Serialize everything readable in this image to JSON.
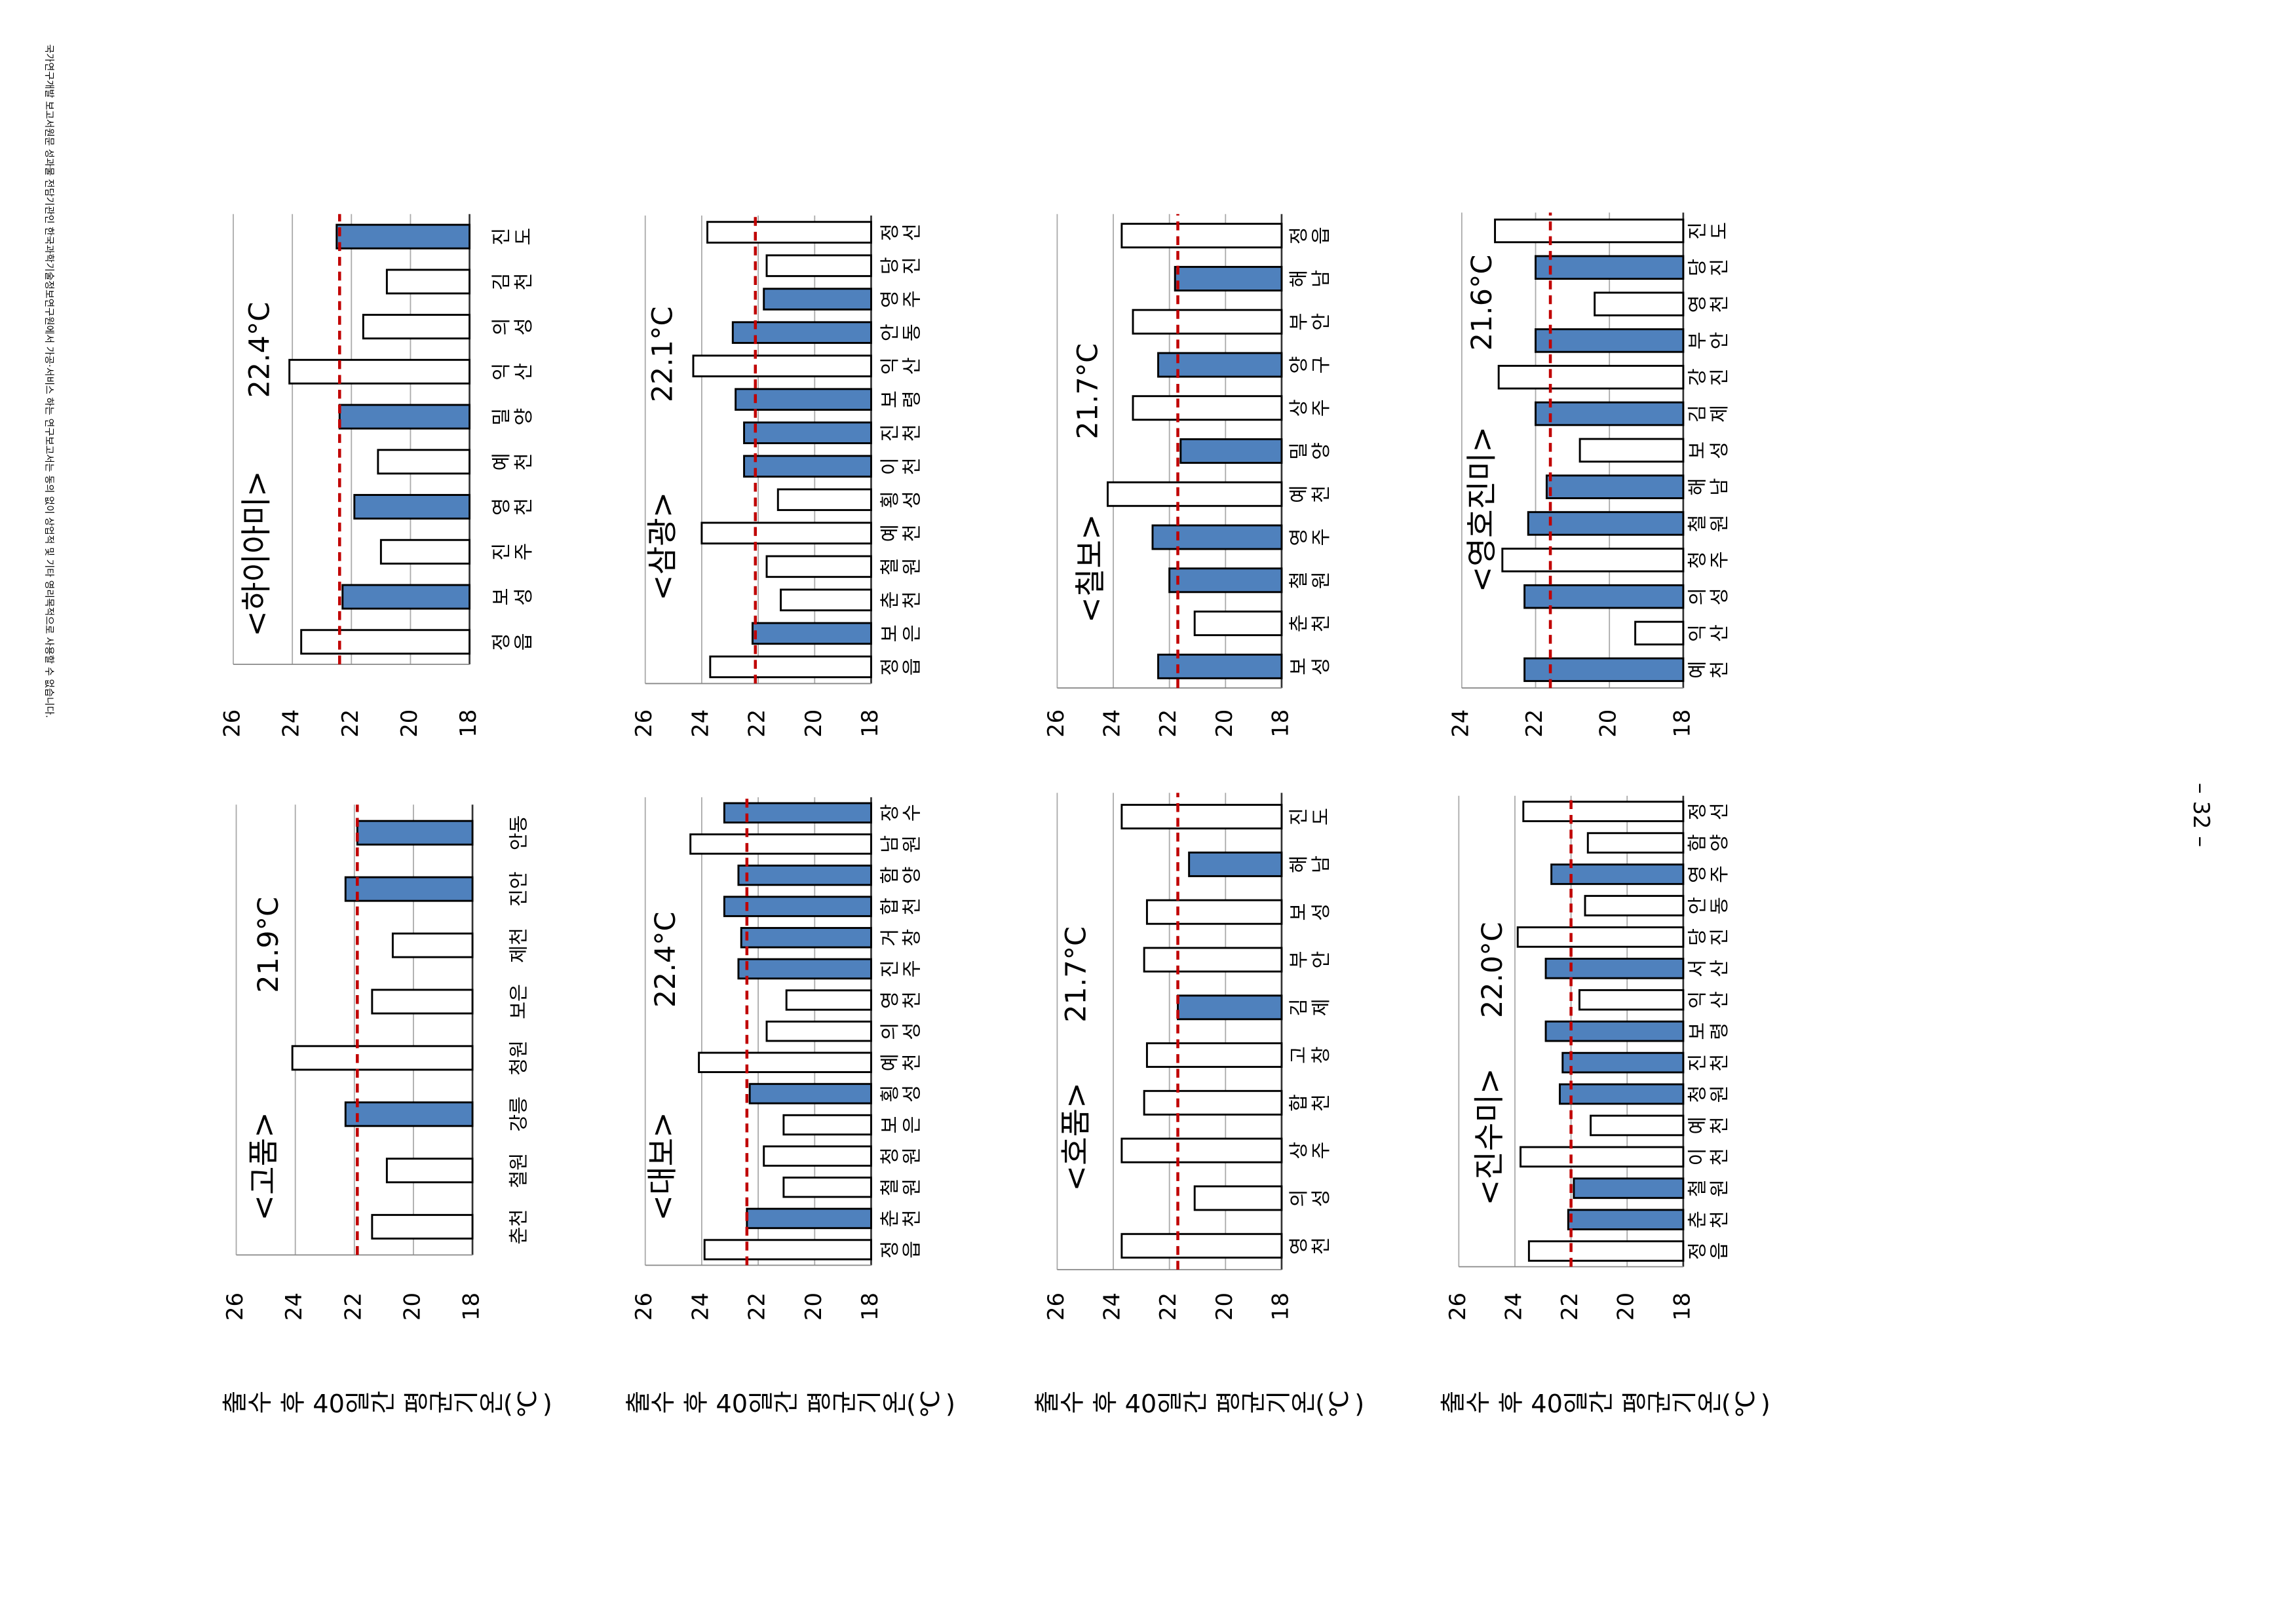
{
  "footer_note": "국가연구개발 보고서원문 성과물 전담기관인 한국과학기술정보연구원에서 가공·서비스 하는 연구보고서는 동의 없이 상업적 및 기타 영리목적으로 사용할 수 없습니다.",
  "page_number": "– 32 –",
  "chart_data": [
    {
      "type": "bar",
      "title": "<고품>",
      "mean": 21.9,
      "mean_label": "21.9°C",
      "ylabel": "출수 후 40일간 평균기온(℃)",
      "categories": [
        "춘천",
        "철원",
        "강릉",
        "청원",
        "보은",
        "제천",
        "진안",
        "안동"
      ],
      "values": [
        21.4,
        20.9,
        22.3,
        24.1,
        21.4,
        20.7,
        22.3,
        21.9
      ],
      "colors": [
        "#ffffff",
        "#ffffff",
        "#4f81bd",
        "#ffffff",
        "#ffffff",
        "#ffffff",
        "#4f81bd",
        "#4f81bd"
      ],
      "ylim": [
        18,
        26
      ],
      "yticks": [
        18,
        20,
        22,
        24,
        26
      ],
      "grid": true
    },
    {
      "type": "bar",
      "title": "<대보>",
      "mean": 22.4,
      "mean_label": "22.4°C",
      "ylabel": "출수 후 40일간 평균기온(℃)",
      "categories": [
        "정읍",
        "춘천",
        "철원",
        "청원",
        "보은",
        "횡성",
        "예천",
        "의성",
        "영천",
        "진주",
        "거창",
        "합천",
        "함양",
        "남원",
        "장수"
      ],
      "values": [
        23.9,
        22.4,
        21.1,
        21.8,
        21.1,
        22.3,
        24.1,
        21.7,
        21.0,
        22.7,
        22.6,
        23.2,
        22.7,
        24.4,
        23.2
      ],
      "colors": [
        "#ffffff",
        "#4f81bd",
        "#ffffff",
        "#ffffff",
        "#ffffff",
        "#4f81bd",
        "#ffffff",
        "#ffffff",
        "#ffffff",
        "#4f81bd",
        "#4f81bd",
        "#4f81bd",
        "#4f81bd",
        "#ffffff",
        "#4f81bd"
      ],
      "ylim": [
        18,
        26
      ],
      "yticks": [
        18,
        20,
        22,
        24,
        26
      ],
      "grid": true
    },
    {
      "type": "bar",
      "title": "<호품>",
      "mean": 21.7,
      "mean_label": "21.7°C",
      "ylabel": "출수 후 40일간 평균기온(℃)",
      "categories": [
        "영천",
        "의성",
        "상주",
        "합천",
        "고창",
        "김제",
        "부안",
        "보성",
        "해남",
        "진도"
      ],
      "values": [
        23.7,
        21.1,
        23.7,
        22.9,
        22.8,
        21.7,
        22.9,
        22.8,
        21.3,
        23.7
      ],
      "colors": [
        "#ffffff",
        "#ffffff",
        "#ffffff",
        "#ffffff",
        "#ffffff",
        "#4f81bd",
        "#ffffff",
        "#ffffff",
        "#4f81bd",
        "#ffffff"
      ],
      "ylim": [
        18,
        26
      ],
      "yticks": [
        18,
        20,
        22,
        24,
        26
      ],
      "grid": true
    },
    {
      "type": "bar",
      "title": "<진수미>",
      "mean": 22.0,
      "mean_label": "22.0°C",
      "ylabel": "출수 후 40일간 평균기온(℃)",
      "categories": [
        "정읍",
        "춘천",
        "철원",
        "이천",
        "예천",
        "청원",
        "진천",
        "보령",
        "익산",
        "서산",
        "당진",
        "안동",
        "영주",
        "함양",
        "정선"
      ],
      "values": [
        23.5,
        22.1,
        21.9,
        23.8,
        21.3,
        22.4,
        22.3,
        22.9,
        21.7,
        22.9,
        23.9,
        21.5,
        22.7,
        21.4,
        23.7
      ],
      "colors": [
        "#ffffff",
        "#4f81bd",
        "#4f81bd",
        "#ffffff",
        "#ffffff",
        "#4f81bd",
        "#4f81bd",
        "#4f81bd",
        "#ffffff",
        "#4f81bd",
        "#ffffff",
        "#ffffff",
        "#4f81bd",
        "#ffffff",
        "#ffffff"
      ],
      "ylim": [
        18,
        26
      ],
      "yticks": [
        18,
        20,
        22,
        24,
        26
      ],
      "grid": true
    },
    {
      "type": "bar",
      "title": "<하이아미>",
      "mean": 22.4,
      "mean_label": "22.4°C",
      "categories": [
        "정읍",
        "보성",
        "진주",
        "영천",
        "예천",
        "밀양",
        "익산",
        "의성",
        "김천",
        "진도"
      ],
      "values": [
        23.7,
        22.3,
        21.0,
        21.9,
        21.1,
        22.4,
        24.1,
        21.6,
        20.8,
        22.5
      ],
      "colors": [
        "#ffffff",
        "#4f81bd",
        "#ffffff",
        "#4f81bd",
        "#ffffff",
        "#4f81bd",
        "#ffffff",
        "#ffffff",
        "#ffffff",
        "#4f81bd"
      ],
      "ylim": [
        18,
        26
      ],
      "yticks": [
        18,
        20,
        22,
        24,
        26
      ],
      "grid": true
    },
    {
      "type": "bar",
      "title": "<삼광>",
      "mean": 22.1,
      "mean_label": "22.1°C",
      "categories": [
        "정읍",
        "보은",
        "춘천",
        "철원",
        "예천",
        "횡성",
        "이천",
        "진천",
        "보령",
        "익산",
        "안동",
        "영주",
        "당진",
        "정선"
      ],
      "values": [
        23.7,
        22.2,
        21.2,
        21.7,
        24.0,
        21.3,
        22.5,
        22.5,
        22.8,
        24.3,
        22.9,
        21.8,
        21.7,
        23.8
      ],
      "colors": [
        "#ffffff",
        "#4f81bd",
        "#ffffff",
        "#ffffff",
        "#ffffff",
        "#ffffff",
        "#4f81bd",
        "#4f81bd",
        "#4f81bd",
        "#ffffff",
        "#4f81bd",
        "#4f81bd",
        "#ffffff",
        "#ffffff"
      ],
      "ylim": [
        18,
        26
      ],
      "yticks": [
        18,
        20,
        22,
        24,
        26
      ],
      "grid": true
    },
    {
      "type": "bar",
      "title": "<칠보>",
      "mean": 21.7,
      "mean_label": "21.7°C",
      "categories": [
        "보성",
        "춘천",
        "철원",
        "영주",
        "예천",
        "밀양",
        "상주",
        "양구",
        "부안",
        "해남",
        "정읍"
      ],
      "values": [
        22.4,
        21.1,
        22.0,
        22.6,
        24.2,
        21.6,
        23.3,
        22.4,
        23.3,
        21.8,
        23.7
      ],
      "colors": [
        "#4f81bd",
        "#ffffff",
        "#4f81bd",
        "#4f81bd",
        "#ffffff",
        "#4f81bd",
        "#ffffff",
        "#4f81bd",
        "#ffffff",
        "#4f81bd",
        "#ffffff"
      ],
      "ylim": [
        18,
        26
      ],
      "yticks": [
        18,
        20,
        22,
        24,
        26
      ],
      "grid": true
    },
    {
      "type": "bar",
      "title": "<영호진미>",
      "mean": 21.6,
      "mean_label": "21.6°C",
      "categories": [
        "예천",
        "익산",
        "의성",
        "청주",
        "철원",
        "해남",
        "보성",
        "김제",
        "강진",
        "부안",
        "영천",
        "당진",
        "진도"
      ],
      "values": [
        22.3,
        19.3,
        22.3,
        22.9,
        22.2,
        21.7,
        20.8,
        22.0,
        23.0,
        22.0,
        20.4,
        22.0,
        23.1
      ],
      "colors": [
        "#4f81bd",
        "#ffffff",
        "#4f81bd",
        "#ffffff",
        "#4f81bd",
        "#4f81bd",
        "#ffffff",
        "#4f81bd",
        "#ffffff",
        "#4f81bd",
        "#ffffff",
        "#4f81bd",
        "#ffffff"
      ],
      "ylim": [
        18,
        24
      ],
      "yticks": [
        18,
        20,
        22,
        24
      ],
      "grid": true
    }
  ]
}
